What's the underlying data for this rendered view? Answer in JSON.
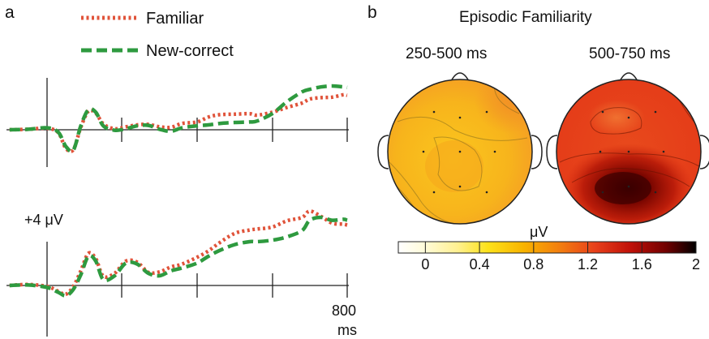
{
  "panel_a": {
    "label": "a",
    "legend": [
      {
        "label": "Familiar",
        "color": "#e0533a",
        "style": "dotted"
      },
      {
        "label": "New-correct",
        "color": "#2e9a3f",
        "style": "dashed"
      }
    ],
    "scale_label": "+4 μV",
    "x_end_label": "800",
    "x_unit_label": "ms"
  },
  "panel_b": {
    "label": "b",
    "title": "Episodic Familiarity",
    "maps": [
      {
        "window": "250-500 ms",
        "level": "low (approx. 0.4–1.0 μV)"
      },
      {
        "window": "500-750 ms",
        "level": "high (approx. 1.0–1.8 μV)"
      }
    ],
    "colorbar": {
      "unit": "μV",
      "min": -0.2,
      "max": 2.0,
      "tick_labels": [
        "0",
        "0.4",
        "0.8",
        "1.2",
        "1.6",
        "2"
      ],
      "tick_values": [
        0,
        0.4,
        0.8,
        1.2,
        1.6,
        2.0
      ],
      "colormap": [
        "#ffffff",
        "#fff3a0",
        "#fde21a",
        "#f7b300",
        "#f07a10",
        "#e8401a",
        "#c01008",
        "#700000",
        "#000000"
      ]
    }
  },
  "chart_data": [
    {
      "type": "line",
      "title": "",
      "xlabel": "ms",
      "ylabel": "",
      "xlim": [
        -100,
        800
      ],
      "x_ticks": [
        0,
        200,
        400,
        600,
        800
      ],
      "scale_bar_uV": 4,
      "series": [
        {
          "name": "Familiar",
          "x": [
            -100,
            -50,
            0,
            30,
            50,
            70,
            90,
            110,
            130,
            150,
            180,
            210,
            240,
            270,
            300,
            330,
            360,
            400,
            430,
            460,
            500,
            540,
            560,
            600,
            640,
            680,
            700,
            730,
            760,
            790,
            800
          ],
          "y": [
            0,
            0.1,
            0.3,
            -0.6,
            -3.8,
            -4.1,
            0.5,
            3.8,
            3.4,
            1.2,
            0.2,
            0.6,
            1,
            1.1,
            0.6,
            0.5,
            1.3,
            1.6,
            2.6,
            3.1,
            3.2,
            3.3,
            3.0,
            3.6,
            4.6,
            5.5,
            6.3,
            6.6,
            6.7,
            7.2,
            7.1
          ]
        },
        {
          "name": "New-correct",
          "x": [
            -100,
            -50,
            0,
            30,
            50,
            70,
            90,
            110,
            130,
            150,
            180,
            210,
            240,
            270,
            300,
            330,
            360,
            400,
            430,
            460,
            500,
            540,
            560,
            600,
            640,
            680,
            700,
            730,
            760,
            790,
            800
          ],
          "y": [
            0,
            0.1,
            0.4,
            -0.5,
            -3.4,
            -4.2,
            0.8,
            4.1,
            3.6,
            0.8,
            -0.1,
            0.2,
            0.8,
            0.9,
            0.1,
            -0.3,
            0.4,
            0.8,
            1.0,
            1.3,
            1.5,
            1.6,
            1.8,
            3.3,
            5.8,
            7.8,
            8.3,
            8.8,
            9.0,
            8.8,
            8.7
          ]
        }
      ]
    },
    {
      "type": "line",
      "title": "",
      "xlabel": "ms",
      "ylabel": "",
      "xlim": [
        -100,
        800
      ],
      "x_ticks": [
        0,
        200,
        400,
        600,
        800
      ],
      "scale_bar_uV": 4,
      "series": [
        {
          "name": "Familiar",
          "x": [
            -100,
            -50,
            0,
            30,
            50,
            70,
            90,
            110,
            130,
            150,
            180,
            210,
            240,
            270,
            300,
            330,
            360,
            400,
            430,
            460,
            500,
            540,
            560,
            600,
            640,
            680,
            700,
            730,
            760,
            790,
            800
          ],
          "y": [
            0,
            0.2,
            -0.2,
            -1.2,
            -1.8,
            -0.2,
            3.0,
            6.6,
            5.5,
            1.9,
            2.5,
            5.0,
            4.8,
            2.7,
            2.8,
            3.8,
            4.4,
            5.8,
            7.1,
            8.8,
            10.7,
            11.4,
            11.6,
            12.0,
            13.3,
            14.0,
            15.3,
            14.2,
            12.8,
            12.6,
            12.4
          ]
        },
        {
          "name": "New-correct",
          "x": [
            -100,
            -50,
            0,
            30,
            50,
            70,
            90,
            110,
            130,
            150,
            180,
            210,
            240,
            270,
            300,
            330,
            360,
            400,
            430,
            460,
            500,
            540,
            560,
            600,
            640,
            680,
            700,
            730,
            760,
            790,
            800
          ],
          "y": [
            0,
            0.1,
            -0.4,
            -1.4,
            -2.1,
            -0.8,
            2.2,
            6.0,
            5.0,
            1.2,
            2.0,
            4.6,
            4.4,
            2.5,
            2.0,
            3.0,
            3.6,
            4.6,
            6.0,
            7.2,
            8.4,
            9.0,
            9.0,
            9.3,
            10.0,
            11.3,
            13.4,
            14.0,
            13.4,
            13.6,
            13.4
          ]
        }
      ]
    }
  ]
}
